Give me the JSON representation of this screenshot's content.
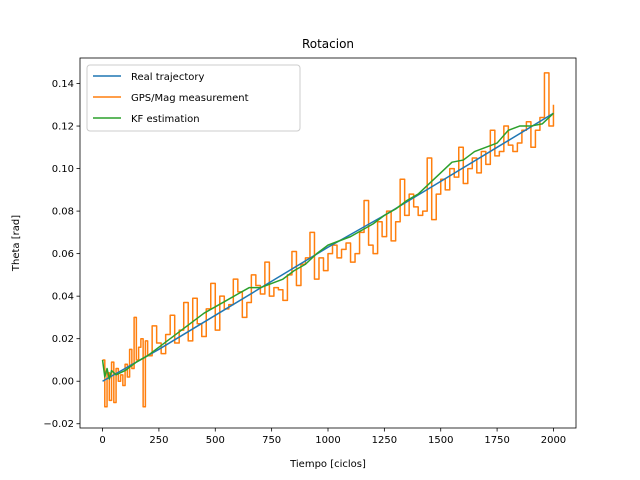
{
  "chart_data": {
    "type": "line",
    "title": "Rotacion",
    "xlabel": "Tiempo [ciclos]",
    "ylabel": "Theta [rad]",
    "xlim": [
      -100,
      2100
    ],
    "ylim": [
      -0.022,
      0.152
    ],
    "x_ticks": [
      0,
      250,
      500,
      750,
      1000,
      1250,
      1500,
      1750,
      2000
    ],
    "x_tick_labels": [
      "0",
      "250",
      "500",
      "750",
      "1000",
      "1250",
      "1500",
      "1750",
      "2000"
    ],
    "y_ticks": [
      -0.02,
      0.0,
      0.02,
      0.04,
      0.06,
      0.08,
      0.1,
      0.12,
      0.14
    ],
    "y_tick_labels": [
      "−0.02",
      "0.00",
      "0.02",
      "0.04",
      "0.06",
      "0.08",
      "0.10",
      "0.12",
      "0.14"
    ],
    "grid": false,
    "legend_position": "upper-left",
    "series": [
      {
        "name": "Real trajectory",
        "color": "#1f77b4",
        "step": false,
        "x": [
          0,
          250,
          500,
          750,
          1000,
          1250,
          1500,
          1750,
          2000
        ],
        "y": [
          0.0,
          0.015,
          0.031,
          0.047,
          0.063,
          0.078,
          0.094,
          0.11,
          0.126
        ]
      },
      {
        "name": "GPS/Mag measurement",
        "color": "#ff7f0e",
        "step": true,
        "x": [
          0,
          10,
          20,
          30,
          40,
          50,
          60,
          70,
          80,
          90,
          100,
          110,
          120,
          130,
          140,
          150,
          160,
          170,
          180,
          190,
          200,
          220,
          240,
          260,
          280,
          300,
          320,
          340,
          360,
          380,
          400,
          420,
          440,
          460,
          480,
          500,
          520,
          540,
          560,
          580,
          600,
          620,
          640,
          660,
          680,
          700,
          720,
          740,
          760,
          780,
          800,
          820,
          840,
          860,
          880,
          900,
          920,
          940,
          960,
          980,
          1000,
          1020,
          1040,
          1060,
          1080,
          1100,
          1120,
          1140,
          1160,
          1180,
          1200,
          1220,
          1240,
          1260,
          1280,
          1300,
          1320,
          1340,
          1360,
          1380,
          1400,
          1420,
          1440,
          1460,
          1480,
          1500,
          1520,
          1540,
          1560,
          1580,
          1600,
          1620,
          1640,
          1660,
          1680,
          1700,
          1720,
          1740,
          1760,
          1780,
          1800,
          1820,
          1840,
          1860,
          1880,
          1900,
          1920,
          1940,
          1960,
          1980,
          2000
        ],
        "y": [
          0.01,
          -0.012,
          0.004,
          -0.009,
          0.009,
          -0.01,
          0.006,
          0.0,
          0.003,
          -0.002,
          0.008,
          0.002,
          0.015,
          0.006,
          0.03,
          0.01,
          0.016,
          0.02,
          -0.012,
          0.019,
          0.012,
          0.026,
          0.018,
          0.013,
          0.022,
          0.031,
          0.018,
          0.024,
          0.037,
          0.019,
          0.039,
          0.027,
          0.021,
          0.034,
          0.046,
          0.024,
          0.04,
          0.034,
          0.036,
          0.048,
          0.042,
          0.03,
          0.037,
          0.05,
          0.045,
          0.041,
          0.056,
          0.04,
          0.044,
          0.043,
          0.038,
          0.05,
          0.061,
          0.045,
          0.055,
          0.058,
          0.07,
          0.048,
          0.058,
          0.052,
          0.06,
          0.064,
          0.058,
          0.062,
          0.065,
          0.056,
          0.06,
          0.07,
          0.085,
          0.064,
          0.06,
          0.075,
          0.068,
          0.08,
          0.066,
          0.075,
          0.095,
          0.078,
          0.088,
          0.082,
          0.078,
          0.08,
          0.105,
          0.076,
          0.088,
          0.095,
          0.09,
          0.1,
          0.096,
          0.11,
          0.093,
          0.1,
          0.105,
          0.098,
          0.108,
          0.102,
          0.118,
          0.106,
          0.108,
          0.12,
          0.111,
          0.108,
          0.112,
          0.118,
          0.122,
          0.11,
          0.118,
          0.124,
          0.145,
          0.12,
          0.13
        ]
      },
      {
        "name": "KF estimation",
        "color": "#2ca02c",
        "step": false,
        "x": [
          0,
          10,
          20,
          30,
          40,
          60,
          80,
          100,
          150,
          200,
          250,
          300,
          350,
          400,
          450,
          500,
          550,
          600,
          650,
          700,
          750,
          800,
          850,
          900,
          950,
          1000,
          1050,
          1100,
          1150,
          1200,
          1250,
          1300,
          1350,
          1400,
          1450,
          1500,
          1550,
          1600,
          1650,
          1700,
          1750,
          1800,
          1850,
          1900,
          1950,
          2000
        ],
        "y": [
          0.01,
          0.002,
          0.006,
          0.001,
          0.005,
          0.003,
          0.004,
          0.005,
          0.009,
          0.012,
          0.016,
          0.02,
          0.024,
          0.028,
          0.032,
          0.035,
          0.038,
          0.041,
          0.044,
          0.044,
          0.046,
          0.048,
          0.052,
          0.055,
          0.06,
          0.064,
          0.066,
          0.068,
          0.071,
          0.074,
          0.078,
          0.081,
          0.085,
          0.088,
          0.093,
          0.098,
          0.103,
          0.104,
          0.108,
          0.11,
          0.112,
          0.118,
          0.12,
          0.12,
          0.121,
          0.126
        ]
      }
    ]
  }
}
